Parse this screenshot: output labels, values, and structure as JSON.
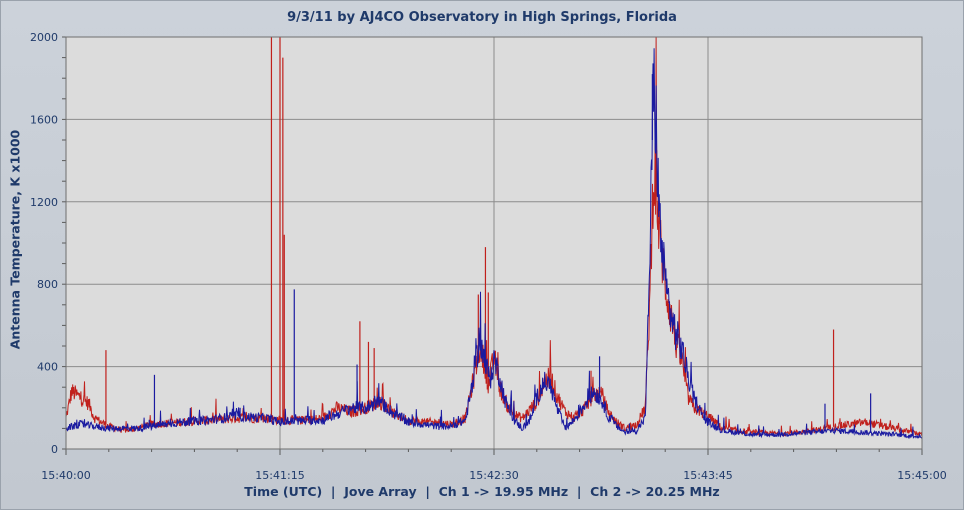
{
  "chart_data": {
    "type": "line",
    "title": "9/3/11  by  AJ4CO Observatory  in  High Springs, Florida",
    "xlabel_parts": [
      "Time (UTC)",
      "Jove Array",
      "Ch 1 -> 19.95 MHz",
      "Ch 2 -> 20.25 MHz"
    ],
    "ylabel": "Antenna Temperature, K x1000",
    "ylim": [
      0,
      2000
    ],
    "yticks": [
      0,
      400,
      800,
      1200,
      1600,
      2000
    ],
    "xlim_seconds": [
      0,
      300
    ],
    "xticks": [
      {
        "t": 0,
        "label": "15:40:00"
      },
      {
        "t": 75,
        "label": "15:41:15"
      },
      {
        "t": 150,
        "label": "15:42:30"
      },
      {
        "t": 225,
        "label": "15:43:45"
      },
      {
        "t": 300,
        "label": "15:45:00"
      }
    ],
    "series": [
      {
        "name": "Ch 1 -> 19.95 MHz",
        "color": "#c0201c",
        "points": [
          [
            0,
            150
          ],
          [
            2,
            280
          ],
          [
            5,
            250
          ],
          [
            8,
            220
          ],
          [
            10,
            150
          ],
          [
            15,
            110
          ],
          [
            20,
            90
          ],
          [
            25,
            100
          ],
          [
            30,
            120
          ],
          [
            40,
            130
          ],
          [
            50,
            140
          ],
          [
            60,
            150
          ],
          [
            70,
            150
          ],
          [
            75,
            140
          ],
          [
            85,
            140
          ],
          [
            90,
            150
          ],
          [
            95,
            200
          ],
          [
            100,
            180
          ],
          [
            105,
            200
          ],
          [
            110,
            230
          ],
          [
            115,
            170
          ],
          [
            120,
            140
          ],
          [
            125,
            130
          ],
          [
            130,
            130
          ],
          [
            135,
            120
          ],
          [
            140,
            150
          ],
          [
            143,
            350
          ],
          [
            145,
            500
          ],
          [
            147,
            400
          ],
          [
            148,
            300
          ],
          [
            150,
            450
          ],
          [
            152,
            300
          ],
          [
            155,
            200
          ],
          [
            158,
            160
          ],
          [
            160,
            150
          ],
          [
            165,
            230
          ],
          [
            168,
            330
          ],
          [
            170,
            350
          ],
          [
            172,
            260
          ],
          [
            175,
            180
          ],
          [
            178,
            150
          ],
          [
            182,
            200
          ],
          [
            185,
            270
          ],
          [
            188,
            260
          ],
          [
            190,
            180
          ],
          [
            193,
            130
          ],
          [
            196,
            100
          ],
          [
            200,
            120
          ],
          [
            203,
            200
          ],
          [
            204,
            500
          ],
          [
            205,
            900
          ],
          [
            206,
            1400
          ],
          [
            208,
            1050
          ],
          [
            210,
            800
          ],
          [
            212,
            650
          ],
          [
            214,
            500
          ],
          [
            216,
            420
          ],
          [
            218,
            250
          ],
          [
            220,
            200
          ],
          [
            225,
            160
          ],
          [
            230,
            100
          ],
          [
            240,
            80
          ],
          [
            250,
            75
          ],
          [
            260,
            85
          ],
          [
            270,
            110
          ],
          [
            280,
            130
          ],
          [
            290,
            100
          ],
          [
            300,
            70
          ]
        ],
        "spikes": [
          [
            2,
            290
          ],
          [
            14,
            480
          ],
          [
            72,
            2000
          ],
          [
            75,
            2000
          ],
          [
            76,
            1900
          ],
          [
            76.5,
            1040
          ],
          [
            103,
            620
          ],
          [
            106,
            520
          ],
          [
            108,
            490
          ],
          [
            144.5,
            750
          ],
          [
            147,
            980
          ],
          [
            148,
            760
          ],
          [
            184,
            380
          ],
          [
            207,
            1450
          ],
          [
            269,
            580
          ]
        ]
      },
      {
        "name": "Ch 2 -> 20.25 MHz",
        "color": "#1a1aa0",
        "points": [
          [
            0,
            100
          ],
          [
            5,
            120
          ],
          [
            10,
            110
          ],
          [
            15,
            100
          ],
          [
            20,
            100
          ],
          [
            25,
            100
          ],
          [
            30,
            110
          ],
          [
            40,
            130
          ],
          [
            50,
            140
          ],
          [
            60,
            160
          ],
          [
            70,
            150
          ],
          [
            75,
            130
          ],
          [
            85,
            140
          ],
          [
            90,
            140
          ],
          [
            95,
            170
          ],
          [
            100,
            200
          ],
          [
            105,
            200
          ],
          [
            110,
            230
          ],
          [
            115,
            170
          ],
          [
            120,
            130
          ],
          [
            125,
            120
          ],
          [
            130,
            110
          ],
          [
            135,
            110
          ],
          [
            140,
            140
          ],
          [
            143,
            350
          ],
          [
            145,
            550
          ],
          [
            147,
            400
          ],
          [
            149,
            340
          ],
          [
            150,
            440
          ],
          [
            152,
            350
          ],
          [
            154,
            230
          ],
          [
            157,
            140
          ],
          [
            160,
            100
          ],
          [
            163,
            150
          ],
          [
            165,
            250
          ],
          [
            168,
            330
          ],
          [
            170,
            300
          ],
          [
            172,
            200
          ],
          [
            175,
            100
          ],
          [
            178,
            140
          ],
          [
            182,
            220
          ],
          [
            185,
            280
          ],
          [
            188,
            230
          ],
          [
            190,
            160
          ],
          [
            193,
            110
          ],
          [
            196,
            80
          ],
          [
            200,
            90
          ],
          [
            203,
            150
          ],
          [
            204,
            600
          ],
          [
            205,
            1200
          ],
          [
            206,
            1800
          ],
          [
            207,
            1500
          ],
          [
            208,
            1100
          ],
          [
            210,
            800
          ],
          [
            212,
            650
          ],
          [
            214,
            550
          ],
          [
            216,
            480
          ],
          [
            218,
            350
          ],
          [
            220,
            250
          ],
          [
            224,
            140
          ],
          [
            230,
            90
          ],
          [
            240,
            70
          ],
          [
            250,
            70
          ],
          [
            260,
            80
          ],
          [
            270,
            90
          ],
          [
            280,
            80
          ],
          [
            290,
            70
          ],
          [
            300,
            60
          ]
        ],
        "spikes": [
          [
            31,
            360
          ],
          [
            61,
            200
          ],
          [
            80,
            775
          ],
          [
            102,
            410
          ],
          [
            150,
            480
          ],
          [
            187,
            450
          ],
          [
            205.5,
            1820
          ],
          [
            266,
            220
          ],
          [
            282,
            270
          ]
        ]
      }
    ]
  }
}
